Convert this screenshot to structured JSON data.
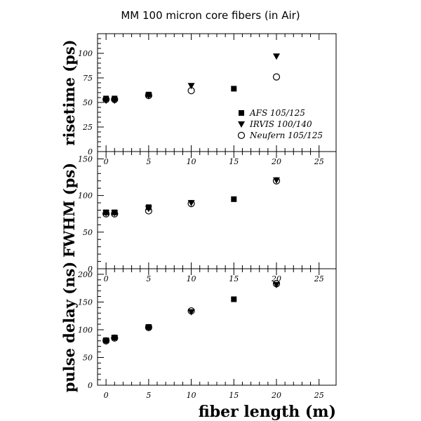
{
  "chart_data": {
    "title": "MM 100 micron core fibers (in Air)",
    "xlabel": "fiber length (m)",
    "xlim": [
      -1,
      27
    ],
    "x_ticks": [
      0,
      5,
      10,
      15,
      20,
      25
    ],
    "legend": {
      "placement": "lower-right of top panel",
      "entries": [
        {
          "name": "AFS 105/125",
          "marker": "filled-square",
          "color": "#000000"
        },
        {
          "name": "IRVIS 100/140",
          "marker": "filled-triangle-down",
          "color": "#000000"
        },
        {
          "name": "Neufern 105/125",
          "marker": "open-circle",
          "color": "#000000"
        }
      ]
    },
    "panels": [
      {
        "type": "scatter",
        "ylabel": "risetime (ps)",
        "ylim": [
          0,
          120
        ],
        "y_ticks": [
          0,
          25,
          50,
          75,
          100
        ],
        "series": [
          {
            "name": "AFS 105/125",
            "x": [
              0,
              1,
              5,
              15
            ],
            "y": [
              54,
              54,
              58,
              64
            ]
          },
          {
            "name": "IRVIS 100/140",
            "x": [
              0,
              1,
              5,
              10,
              20
            ],
            "y": [
              52,
              52,
              57,
              67,
              97
            ]
          },
          {
            "name": "Neufern 105/125",
            "x": [
              0,
              1,
              5,
              10,
              20
            ],
            "y": [
              53,
              53,
              57,
              62,
              76
            ]
          }
        ]
      },
      {
        "type": "scatter",
        "ylabel": "FWHM (ps)",
        "ylim": [
          0,
          160
        ],
        "y_ticks": [
          0,
          50,
          100,
          150
        ],
        "series": [
          {
            "name": "AFS 105/125",
            "x": [
              0,
              1,
              5,
              15
            ],
            "y": [
              77,
              77,
              84,
              95
            ]
          },
          {
            "name": "IRVIS 100/140",
            "x": [
              0,
              1,
              5,
              10,
              20
            ],
            "y": [
              76,
              76,
              82,
              90,
              121
            ]
          },
          {
            "name": "Neufern 105/125",
            "x": [
              0,
              1,
              5,
              10,
              20
            ],
            "y": [
              75,
              75,
              79,
              89,
              120
            ]
          }
        ]
      },
      {
        "type": "scatter",
        "ylabel": "pulse delay (ns)",
        "ylim": [
          0,
          210
        ],
        "y_ticks": [
          0,
          50,
          100,
          150,
          200
        ],
        "series": [
          {
            "name": "AFS 105/125",
            "x": [
              0,
              1,
              5,
              15
            ],
            "y": [
              81,
              86,
              105,
              155
            ]
          },
          {
            "name": "IRVIS 100/140",
            "x": [
              0,
              1,
              5,
              10,
              20
            ],
            "y": [
              80,
              85,
              104,
              132,
              181
            ]
          },
          {
            "name": "Neufern 105/125",
            "x": [
              0,
              1,
              5,
              10,
              20
            ],
            "y": [
              80,
              85,
              104,
              134,
              183
            ]
          }
        ]
      }
    ]
  }
}
